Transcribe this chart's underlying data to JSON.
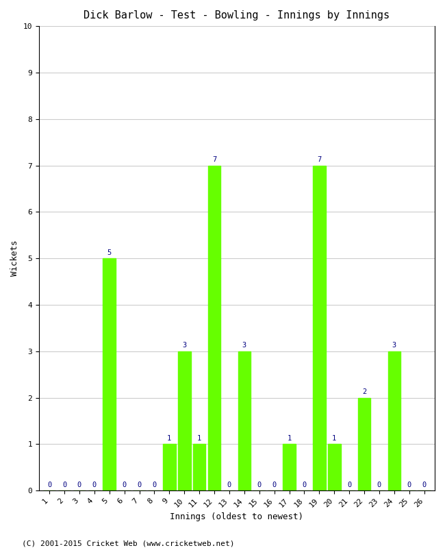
{
  "title": "Dick Barlow - Test - Bowling - Innings by Innings",
  "xlabel": "Innings (oldest to newest)",
  "ylabel": "Wickets",
  "innings": [
    1,
    2,
    3,
    4,
    5,
    6,
    7,
    8,
    9,
    10,
    11,
    12,
    13,
    14,
    15,
    16,
    17,
    18,
    19,
    20,
    21,
    22,
    23,
    24,
    25,
    26
  ],
  "wickets": [
    0,
    0,
    0,
    0,
    5,
    0,
    0,
    0,
    1,
    3,
    1,
    7,
    0,
    3,
    0,
    0,
    1,
    0,
    7,
    1,
    0,
    2,
    0,
    3,
    0,
    0
  ],
  "bar_color": "#66ff00",
  "label_color": "#000080",
  "ylim": [
    0,
    10
  ],
  "yticks": [
    0,
    1,
    2,
    3,
    4,
    5,
    6,
    7,
    8,
    9,
    10
  ],
  "background_color": "#ffffff",
  "footer": "(C) 2001-2015 Cricket Web (www.cricketweb.net)",
  "title_fontsize": 11,
  "axis_label_fontsize": 9,
  "tick_fontsize": 8,
  "bar_label_fontsize": 7.5,
  "footer_fontsize": 8,
  "bar_width": 0.85
}
